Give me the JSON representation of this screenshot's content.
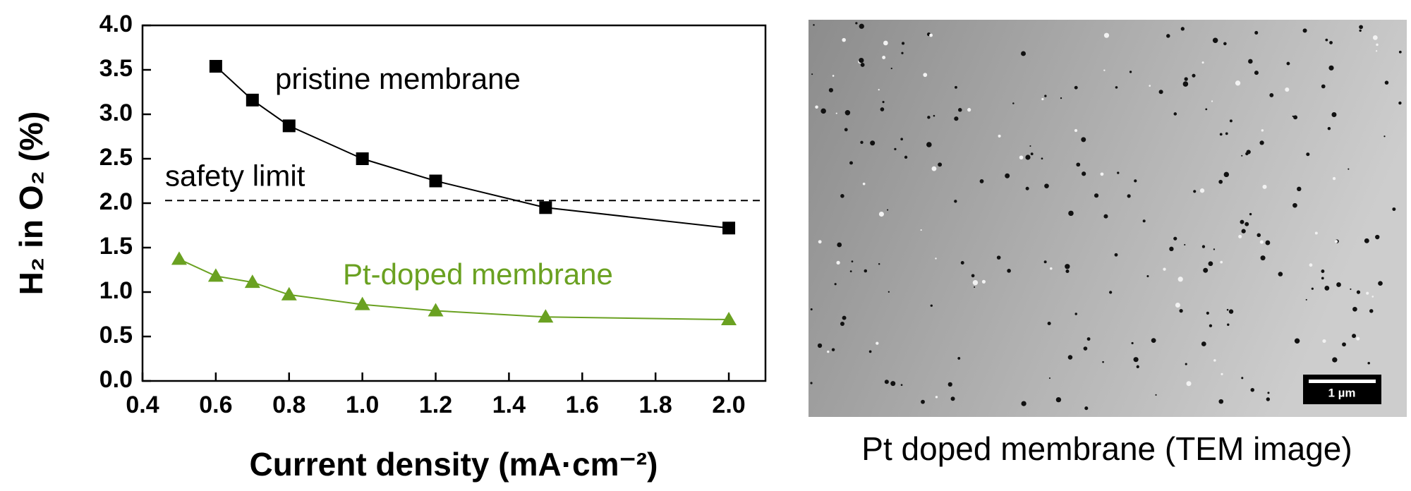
{
  "chart_data": {
    "type": "line",
    "y_label": "H₂ in O₂ (%)",
    "x_label": "Current density (mA·cm⁻²)",
    "xlim": [
      0.4,
      2.1
    ],
    "ylim": [
      0,
      4
    ],
    "xticks": [
      0.4,
      0.6,
      0.8,
      {
        "value": 1.0,
        "label": "1.0"
      },
      1.2,
      1.4,
      1.6,
      1.8,
      {
        "value": 2.0,
        "label": "2.0"
      }
    ],
    "yticks": [
      {
        "value": 0,
        "label": "0.0"
      },
      0.5,
      {
        "value": 1,
        "label": "1.0"
      },
      1.5,
      {
        "value": 2,
        "label": "2.0"
      },
      2.5,
      {
        "value": 3,
        "label": "3.0"
      },
      3.5,
      {
        "value": 4,
        "label": "4.0"
      }
    ],
    "series": [
      {
        "name": "pristine membrane",
        "color": "#000000",
        "marker": "square",
        "x": [
          0.6,
          0.7,
          0.8,
          1.0,
          1.2,
          1.5,
          2.0
        ],
        "values": [
          3.54,
          3.16,
          2.87,
          2.5,
          2.25,
          1.95,
          1.72
        ]
      },
      {
        "name": "Pt-doped membrane",
        "color": "#6aa121",
        "marker": "triangle",
        "x": [
          0.5,
          0.6,
          0.7,
          0.8,
          1.0,
          1.2,
          1.5,
          2.0
        ],
        "values": [
          1.37,
          1.18,
          1.11,
          0.97,
          0.86,
          0.79,
          0.72,
          0.69
        ]
      }
    ],
    "reference_line": {
      "label": "safety limit",
      "value": 2.03
    },
    "image": {
      "caption": "Pt doped membrane (TEM image)",
      "scale_bar": "1 µm"
    }
  }
}
